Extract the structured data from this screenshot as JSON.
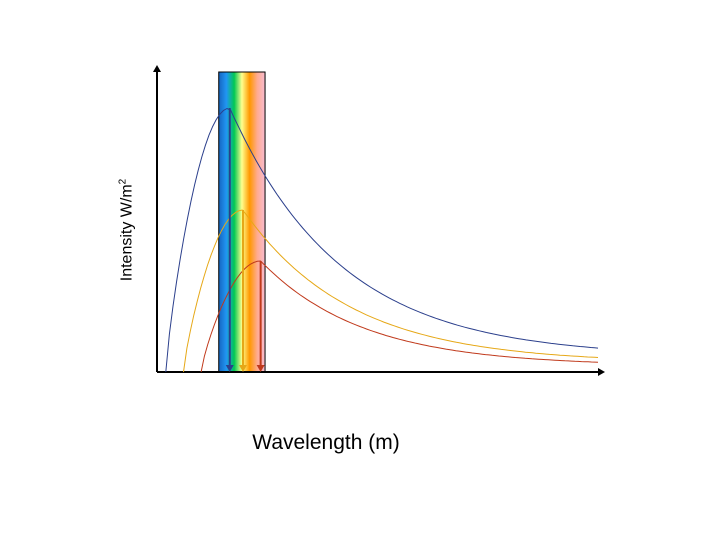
{
  "chart_data": {
    "type": "line",
    "title": "",
    "xlabel": "Wavelength (m)",
    "ylabel": {
      "text": "Intensity W/m",
      "superscript": "2"
    },
    "grid": false,
    "legend": "none",
    "series": [
      {
        "color": "#2b3f8c",
        "peak_x": 0.165,
        "peak_y": 0.88,
        "end_x": 1.0,
        "end_y": 0.05
      },
      {
        "color": "#e6a817",
        "peak_x": 0.195,
        "peak_y": 0.54,
        "end_x": 1.0,
        "end_y": 0.03
      },
      {
        "color": "#c0391b",
        "peak_x": 0.235,
        "peak_y": 0.37,
        "end_x": 1.0,
        "end_y": 0.02
      }
    ],
    "visible_band": {
      "x_start": 0.14,
      "x_end": 0.245,
      "colors": [
        "#1565c0",
        "#2196f3",
        "#00c853",
        "#ffff8d",
        "#ff9800",
        "#ffab91",
        "#f8bbd0"
      ]
    },
    "peak_arrows": [
      {
        "x": 0.165,
        "color": "#2b3f8c"
      },
      {
        "x": 0.195,
        "color": "#e6a817"
      },
      {
        "x": 0.235,
        "color": "#c0391b"
      }
    ]
  }
}
